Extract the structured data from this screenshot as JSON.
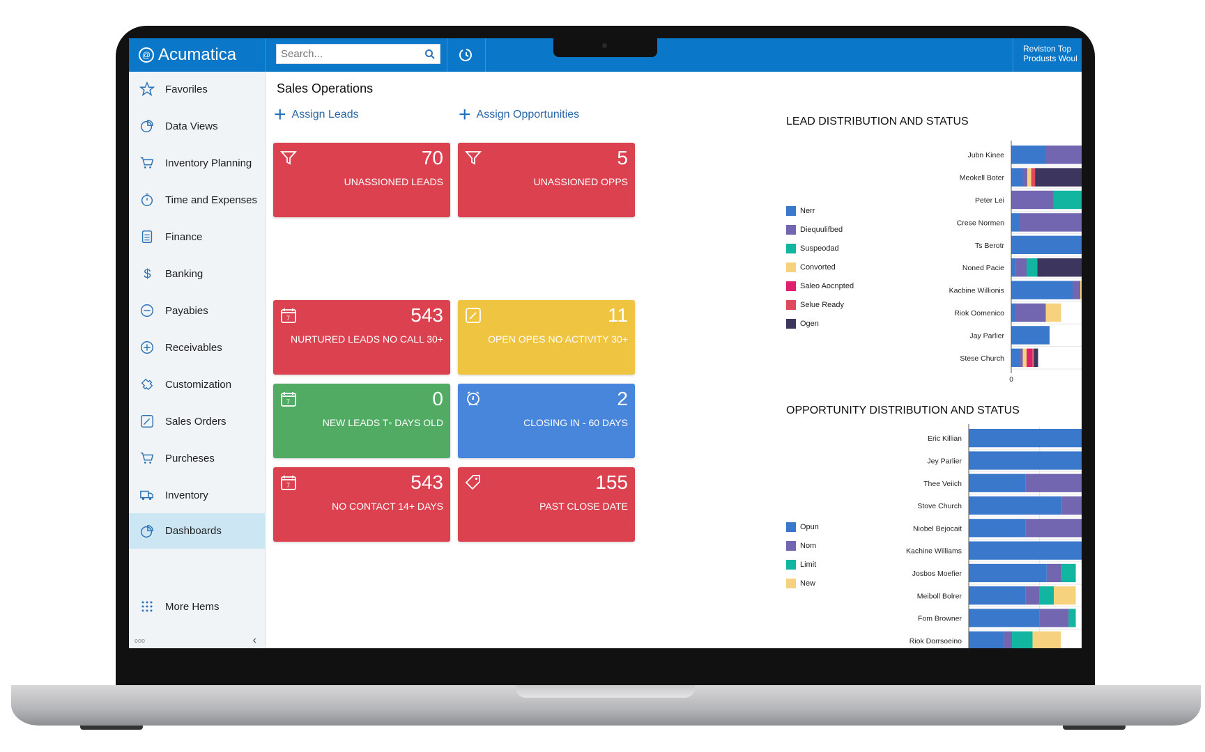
{
  "header": {
    "brand": "Acumatica",
    "search_placeholder": "Search...",
    "right_line1": "Reviston Top",
    "right_line2": "Produsts Woul"
  },
  "sidebar": {
    "items": [
      {
        "label": "Favoriles",
        "icon": "star-icon"
      },
      {
        "label": "Data Views",
        "icon": "pie-chart-icon"
      },
      {
        "label": "Inventory Planning",
        "icon": "cart-icon"
      },
      {
        "label": "Time and Expenses",
        "icon": "stopwatch-icon"
      },
      {
        "label": "Finance",
        "icon": "document-icon"
      },
      {
        "label": "Banking",
        "icon": "dollar-icon"
      },
      {
        "label": "Payabies",
        "icon": "minus-circle-icon"
      },
      {
        "label": "Receivables",
        "icon": "plus-circle-icon"
      },
      {
        "label": "Customization",
        "icon": "puzzle-icon"
      },
      {
        "label": "Sales Orders",
        "icon": "edit-icon"
      },
      {
        "label": "Purcheses",
        "icon": "cart-icon"
      },
      {
        "label": "Inventory",
        "icon": "truck-icon"
      },
      {
        "label": "Dashboards",
        "icon": "dashboard-icon",
        "active": true
      }
    ],
    "more_label": "More Hems",
    "footer_text": "ooo"
  },
  "main": {
    "title": "Sales Operations",
    "assign_leads": "Assign Leads",
    "assign_opps": "Assign Opportunities",
    "tiles": [
      {
        "value": "70",
        "label": "UNASSIONED LEADS",
        "color": "red",
        "icon": "filter-icon"
      },
      {
        "value": "5",
        "label": "UNASSIONED OPPS",
        "color": "red",
        "icon": "filter-icon"
      },
      {
        "value": "543",
        "label": "NURTURED LEADS NO CALL 30+",
        "color": "red",
        "icon": "calendar-icon"
      },
      {
        "value": "11",
        "label": "OPEN OPES NO ACTIVITY 30+",
        "color": "yellow",
        "icon": "edit-icon"
      },
      {
        "value": "0",
        "label": "NEW LEADS T◦ DAYS OLD",
        "color": "green",
        "icon": "calendar-icon"
      },
      {
        "value": "2",
        "label": "CLOSING IN - 60 DAYS",
        "color": "blue",
        "icon": "alarm-clock-icon"
      },
      {
        "value": "543",
        "label": "NO CONTACT 14+ DAYS",
        "color": "red",
        "icon": "calendar-icon"
      },
      {
        "value": "155",
        "label": "PAST CLOSE DATE",
        "color": "red",
        "icon": "tag-icon"
      }
    ],
    "tile_colors": {
      "red": "#dc4150",
      "yellow": "#efc441",
      "green": "#52ab62",
      "blue": "#4886dc"
    }
  },
  "chart_data": [
    {
      "type": "bar",
      "orientation": "horizontal",
      "stacked": true,
      "title": "LEAD DISTRIBUTION AND STATUS",
      "categories": [
        "Jubn Kinee",
        "Meokell Boter",
        "Peter Lei",
        "Crese Normen",
        "Ts Berotr",
        "Noned Pacie",
        "Kacbine Willionis",
        "Riok Oomenico",
        "Jay Parlier",
        "Stese Church"
      ],
      "xticks": [
        0,
        20,
        40
      ],
      "xlim": [
        0,
        54
      ],
      "grid": true,
      "legend": "left",
      "series": [
        {
          "name": "Nerr",
          "color": "#3a78cc",
          "values": [
            9,
            3,
            0,
            2,
            54,
            1.2,
            16,
            1,
            10,
            2
          ]
        },
        {
          "name": "Diequulifbed",
          "color": "#7266b0",
          "values": [
            21,
            1.2,
            11,
            31,
            0,
            2.8,
            2,
            8,
            0,
            1
          ]
        },
        {
          "name": "Suspeodad",
          "color": "#12b5a0",
          "values": [
            20,
            0,
            23,
            21,
            0,
            2.8,
            0,
            0,
            0,
            0
          ]
        },
        {
          "name": "Convorted",
          "color": "#f6d27e",
          "values": [
            2,
            1,
            1,
            0,
            0,
            0,
            0.8,
            4,
            0,
            1
          ]
        },
        {
          "name": "Saleo Aocnpted",
          "color": "#e01f6e",
          "values": [
            1.3,
            0,
            0,
            0,
            0,
            0,
            1.7,
            0,
            0,
            1.5
          ]
        },
        {
          "name": "Selue Ready",
          "color": "#dc4a5c",
          "values": [
            0,
            1,
            0,
            0,
            0,
            0,
            0.5,
            0,
            0,
            0.5
          ]
        },
        {
          "name": "Ogen",
          "color": "#3c365f",
          "values": [
            0.7,
            47.8,
            19,
            0,
            0,
            21.2,
            4,
            0,
            0,
            1
          ]
        }
      ]
    },
    {
      "type": "bar",
      "orientation": "horizontal",
      "stacked": true,
      "title": "OPPORTUNITY DISTRIBUTION AND STATUS",
      "categories": [
        "Eric Killian",
        "Jey Parlier",
        "Thee Veiich",
        "Stove Church",
        "Niobel Bejocait",
        "Kachine Williams",
        "Josbos Moefier",
        "Meiboll Bolrer",
        "Fom Browner",
        "Riok Dorrsoeino"
      ],
      "grid": true,
      "legend": "left",
      "series": [
        {
          "name": "Opun",
          "color": "#3a78cc",
          "values": [
            35,
            23.1,
            8,
            13.1,
            8,
            16.2,
            11,
            8,
            10,
            5
          ]
        },
        {
          "name": "Nom",
          "color": "#7266b0",
          "values": [
            0,
            11.9,
            11.1,
            13.2,
            11.1,
            7.9,
            2.1,
            2,
            4.1,
            1.1
          ]
        },
        {
          "name": "Limit",
          "color": "#12b5a0",
          "values": [
            0,
            0,
            15.9,
            8.7,
            14.2,
            3,
            2,
            2,
            1,
            2.9
          ]
        },
        {
          "name": "New",
          "color": "#f6d27e",
          "values": [
            0,
            0,
            0,
            0,
            0,
            0,
            0,
            3.1,
            0,
            4
          ]
        }
      ]
    }
  ]
}
